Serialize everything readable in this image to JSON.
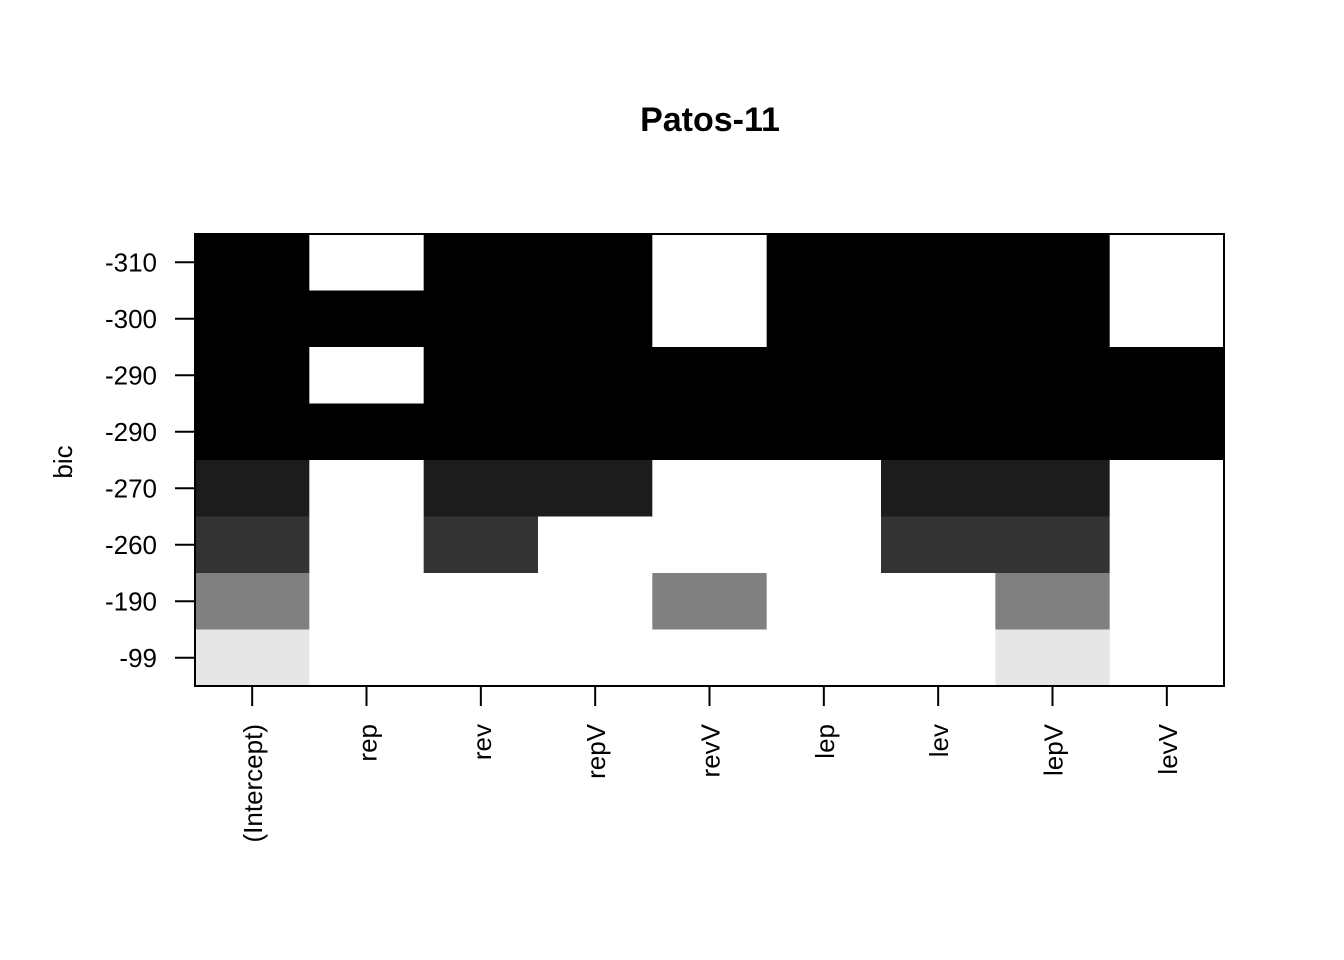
{
  "chart_data": {
    "type": "heatmap",
    "title": "Patos-11",
    "ylabel": "bic",
    "xlabel": "",
    "x_categories": [
      "(Intercept)",
      "rep",
      "rev",
      "repV",
      "revV",
      "lep",
      "lev",
      "lepV",
      "levV"
    ],
    "y_tick_labels": [
      "-310",
      "-300",
      "-290",
      "-290",
      "-270",
      "-260",
      "-190",
      "-99"
    ],
    "cell_fill": [
      [
        "#000000",
        "#ffffff",
        "#000000",
        "#000000",
        "#ffffff",
        "#000000",
        "#000000",
        "#000000",
        "#ffffff"
      ],
      [
        "#000000",
        "#000000",
        "#000000",
        "#000000",
        "#ffffff",
        "#000000",
        "#000000",
        "#000000",
        "#ffffff"
      ],
      [
        "#000000",
        "#ffffff",
        "#000000",
        "#000000",
        "#000000",
        "#000000",
        "#000000",
        "#000000",
        "#000000"
      ],
      [
        "#000000",
        "#000000",
        "#000000",
        "#000000",
        "#000000",
        "#000000",
        "#000000",
        "#000000",
        "#000000"
      ],
      [
        "#1c1c1c",
        "#ffffff",
        "#1c1c1c",
        "#1c1c1c",
        "#ffffff",
        "#ffffff",
        "#1c1c1c",
        "#1c1c1c",
        "#ffffff"
      ],
      [
        "#333333",
        "#ffffff",
        "#333333",
        "#ffffff",
        "#ffffff",
        "#ffffff",
        "#333333",
        "#333333",
        "#ffffff"
      ],
      [
        "#808080",
        "#ffffff",
        "#ffffff",
        "#ffffff",
        "#808080",
        "#ffffff",
        "#ffffff",
        "#808080",
        "#ffffff"
      ],
      [
        "#e6e6e6",
        "#ffffff",
        "#ffffff",
        "#ffffff",
        "#ffffff",
        "#ffffff",
        "#ffffff",
        "#e6e6e6",
        "#ffffff"
      ]
    ],
    "grid": false,
    "legend": "none"
  }
}
